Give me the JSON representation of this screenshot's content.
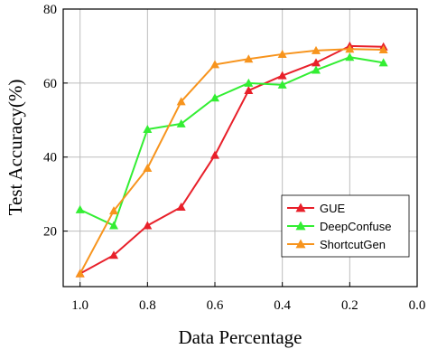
{
  "chart_data": {
    "type": "line",
    "xlabel": "Data Percentage",
    "ylabel": "Test Accuracy(%)",
    "x": [
      1.0,
      0.9,
      0.8,
      0.7,
      0.6,
      0.5,
      0.4,
      0.3,
      0.2,
      0.1
    ],
    "xlim": [
      1.05,
      0.0
    ],
    "ylim": [
      5,
      80
    ],
    "xticks": [
      "1.0",
      "0.8",
      "0.6",
      "0.4",
      "0.2",
      "0.0"
    ],
    "xtick_values": [
      1.0,
      0.8,
      0.6,
      0.4,
      0.2,
      0.0
    ],
    "yticks": [
      "20",
      "40",
      "60",
      "80"
    ],
    "ytick_values": [
      20,
      40,
      60,
      80
    ],
    "grid": true,
    "legend_position": "right",
    "series": [
      {
        "name": "GUE",
        "color": "#e8202a",
        "marker": "triangle",
        "values": [
          8.5,
          13.5,
          21.5,
          26.5,
          40.5,
          58.0,
          62.0,
          65.5,
          70.0,
          69.8
        ]
      },
      {
        "name": "DeepConfuse",
        "color": "#33ee33",
        "marker": "triangle",
        "values": [
          25.8,
          21.5,
          47.5,
          49.0,
          56.0,
          60.0,
          59.5,
          63.5,
          67.0,
          65.5
        ]
      },
      {
        "name": "ShortcutGen",
        "color": "#f7941d",
        "marker": "triangle",
        "values": [
          8.5,
          25.5,
          37.0,
          55.0,
          65.0,
          66.5,
          67.8,
          68.8,
          69.2,
          69.0
        ]
      }
    ]
  }
}
